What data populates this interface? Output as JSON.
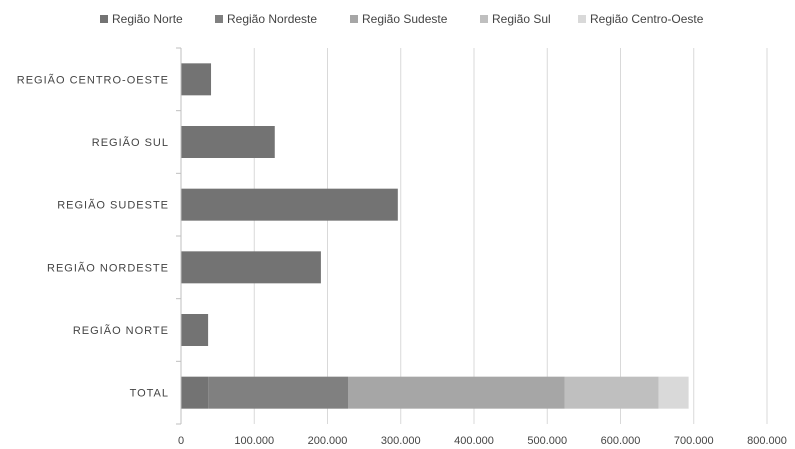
{
  "chart_data": {
    "type": "bar",
    "orientation": "horizontal",
    "stacked": true,
    "title": "",
    "xlabel": "",
    "ylabel": "",
    "xlim": [
      0,
      800000
    ],
    "x_ticks": [
      0,
      100000,
      200000,
      300000,
      400000,
      500000,
      600000,
      700000,
      800000
    ],
    "x_tick_labels": [
      "0",
      "100.000",
      "200.000",
      "300.000",
      "400.000",
      "500.000",
      "600.000",
      "700.000",
      "800.000"
    ],
    "categories": [
      "TOTAL",
      "REGIÃO NORTE",
      "REGIÃO NORDESTE",
      "REGIÃO SUDESTE",
      "REGIÃO SUL",
      "REGIÃO CENTRO-OESTE"
    ],
    "series": [
      {
        "name": "Região Norte",
        "color": "#737373",
        "values": [
          37000,
          37000,
          0,
          0,
          0,
          0
        ]
      },
      {
        "name": "Região Nordeste",
        "color": "#808080",
        "values": [
          191000,
          0,
          191000,
          0,
          0,
          0
        ]
      },
      {
        "name": "Região Sudeste",
        "color": "#a6a6a6",
        "values": [
          296000,
          0,
          0,
          296000,
          0,
          0
        ]
      },
      {
        "name": "Região Sul",
        "color": "#bfbfbf",
        "values": [
          128000,
          0,
          0,
          0,
          128000,
          0
        ]
      },
      {
        "name": "Região Centro-Oeste",
        "color": "#d9d9d9",
        "values": [
          41000,
          0,
          0,
          0,
          0,
          41000
        ]
      }
    ],
    "region_bar_color": "#737373",
    "grid": true,
    "legend_position": "top"
  }
}
